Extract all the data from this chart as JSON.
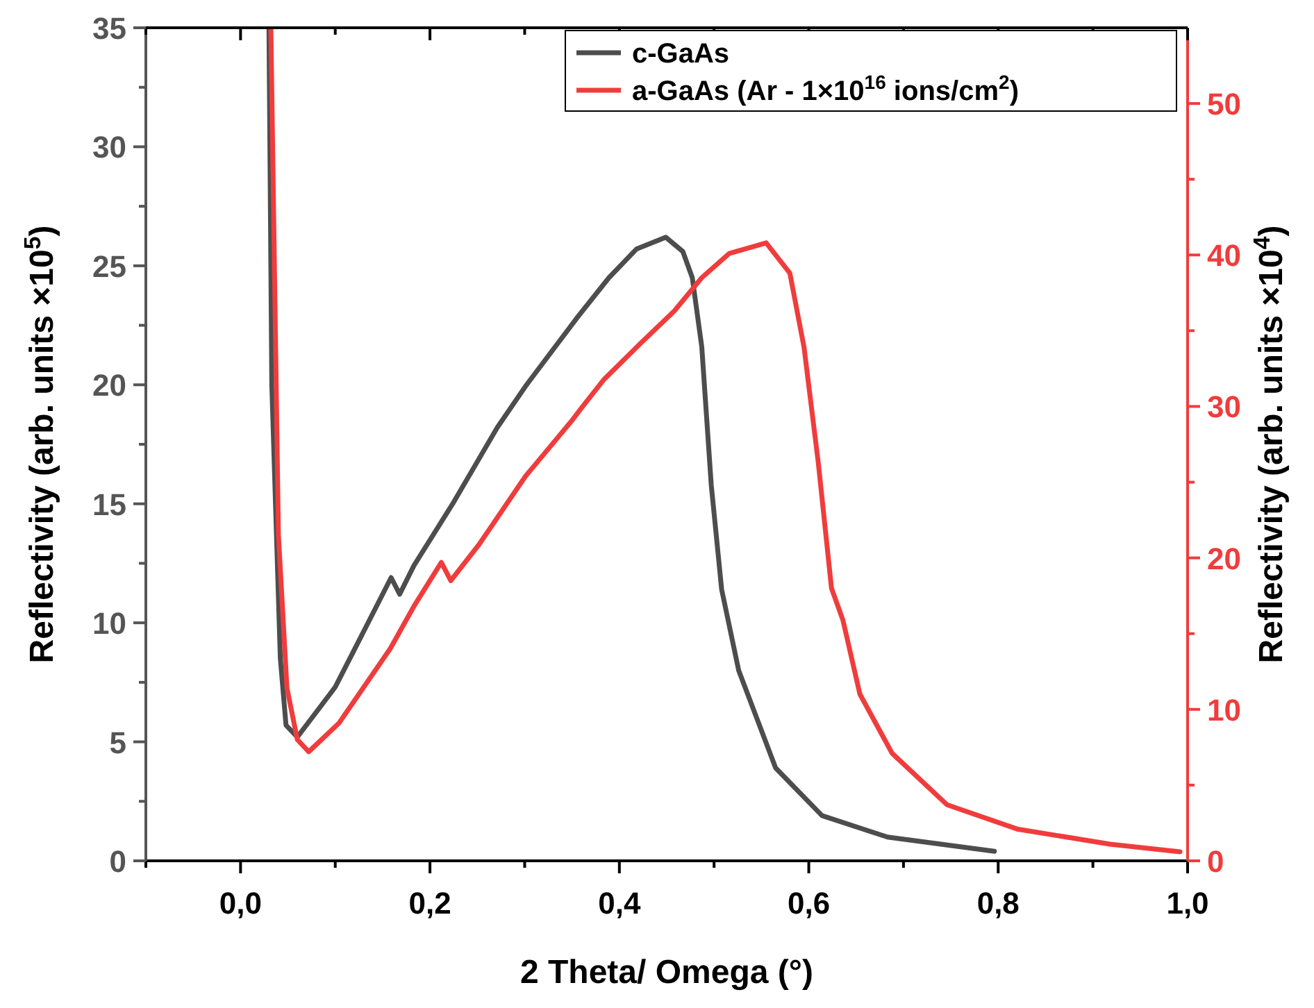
{
  "chart_data": {
    "type": "line",
    "xlabel": "2 Theta/ Omega (°)",
    "ylabel": "Reflectivity (arb. units ×10$^{5}$)",
    "y2label": "Reflectivity (arb. units ×10$^{4}$)",
    "xlim": [
      -0.1,
      1.0
    ],
    "xticks": [
      {
        "value": -0.1,
        "label": null
      },
      {
        "value": 0,
        "label": "0,0"
      },
      {
        "value": 0.1,
        "label": null
      },
      {
        "value": 0.2,
        "label": "0,2"
      },
      {
        "value": 0.3,
        "label": null
      },
      {
        "value": 0.4,
        "label": "0,4"
      },
      {
        "value": 0.5,
        "label": null
      },
      {
        "value": 0.6,
        "label": "0,6"
      },
      {
        "value": 0.7,
        "label": null
      },
      {
        "value": 0.8,
        "label": "0,8"
      },
      {
        "value": 0.9,
        "label": null
      },
      {
        "value": 1.0,
        "label": "1,0"
      }
    ],
    "ylim": [
      0,
      35
    ],
    "yticks": [
      0,
      {
        "value": 2.5,
        "label": null
      },
      5,
      {
        "value": 7.5,
        "label": null
      },
      10,
      {
        "value": 12.5,
        "label": null
      },
      15,
      {
        "value": 17.5,
        "label": null
      },
      20,
      {
        "value": 22.5,
        "label": null
      },
      25,
      {
        "value": 27.5,
        "label": null
      },
      30,
      {
        "value": 32.5,
        "label": null
      },
      35
    ],
    "y2lim": [
      0,
      55
    ],
    "y2ticks": [
      0,
      {
        "value": 5,
        "label": null
      },
      10,
      {
        "value": 15,
        "label": null
      },
      20,
      {
        "value": 25,
        "label": null
      },
      30,
      {
        "value": 35,
        "label": null
      },
      40,
      {
        "value": 45,
        "label": null
      },
      50
    ],
    "legend": "top right",
    "grid": false,
    "marker": "none",
    "line_style": "solid",
    "series": [
      {
        "name": "c-GaAs",
        "color": "#4d4d4d",
        "x": [
          0.03,
          0.033,
          0.042,
          0.048,
          0.06,
          0.1,
          0.159,
          0.168,
          0.183,
          0.224,
          0.271,
          0.302,
          0.355,
          0.389,
          0.418,
          0.449,
          0.467,
          0.477,
          0.487,
          0.497,
          0.508,
          0.526,
          0.565,
          0.614,
          0.683,
          0.796
        ],
        "values": [
          35,
          20,
          8.5,
          5.7,
          5.2,
          7.3,
          11.9,
          11.2,
          12.4,
          15.0,
          18.2,
          20.0,
          22.8,
          24.5,
          25.7,
          26.2,
          25.6,
          24.5,
          21.6,
          15.8,
          11.4,
          8.0,
          3.9,
          1.9,
          1.0,
          0.4
        ]
      },
      {
        "name": "a-GaAs (Ar - 1×10$^{16}$ ions/cm$^{2}$)",
        "color": "#f03c3c",
        "axis": "y2",
        "x": [
          0.032,
          0.04,
          0.049,
          0.06,
          0.072,
          0.104,
          0.158,
          0.183,
          0.212,
          0.222,
          0.252,
          0.301,
          0.349,
          0.36,
          0.384,
          0.423,
          0.458,
          0.487,
          0.516,
          0.555,
          0.58,
          0.595,
          0.61,
          0.624,
          0.636,
          0.654,
          0.688,
          0.746,
          0.82,
          0.918,
          0.992
        ],
        "values": [
          55,
          21.5,
          11.4,
          8.0,
          7.2,
          9.1,
          14.0,
          16.8,
          19.7,
          18.5,
          20.9,
          25.4,
          29.0,
          29.9,
          31.8,
          34.2,
          36.3,
          38.5,
          40.1,
          40.8,
          38.8,
          33.9,
          26.3,
          18.0,
          15.9,
          11.0,
          7.1,
          3.7,
          2.1,
          1.1,
          0.6
        ]
      }
    ]
  }
}
